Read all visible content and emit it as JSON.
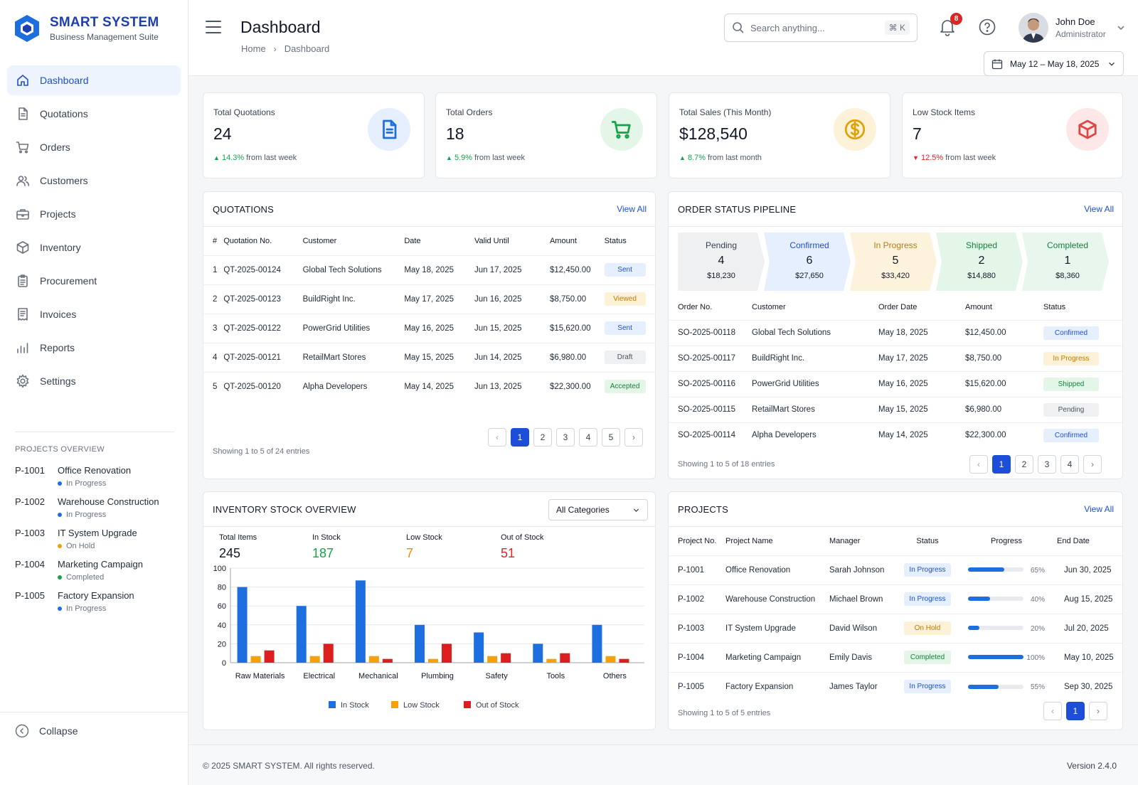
{
  "brand": {
    "title": "SMART SYSTEM",
    "subtitle": "Business Management Suite",
    "accent": "#1d4ed8"
  },
  "nav": [
    {
      "label": "Dashboard",
      "icon": "home-icon",
      "active": true
    },
    {
      "label": "Quotations",
      "icon": "document-icon"
    },
    {
      "label": "Orders",
      "icon": "cart-icon"
    },
    {
      "label": "Customers",
      "icon": "users-icon"
    },
    {
      "label": "Projects",
      "icon": "briefcase-icon"
    },
    {
      "label": "Inventory",
      "icon": "box-icon"
    },
    {
      "label": "Procurement",
      "icon": "clipboard-icon"
    },
    {
      "label": "Invoices",
      "icon": "invoice-icon"
    },
    {
      "label": "Reports",
      "icon": "bar-chart-icon"
    },
    {
      "label": "Settings",
      "icon": "gear-icon"
    }
  ],
  "projects_overview": {
    "title": "PROJECTS OVERVIEW",
    "items": [
      {
        "id": "P-1001",
        "name": "Office Renovation",
        "status": "In Progress",
        "color": "#1d6fe0"
      },
      {
        "id": "P-1002",
        "name": "Warehouse Construction",
        "status": "In Progress",
        "color": "#1d6fe0"
      },
      {
        "id": "P-1003",
        "name": "IT System Upgrade",
        "status": "On Hold",
        "color": "#f59e0b"
      },
      {
        "id": "P-1004",
        "name": "Marketing Campaign",
        "status": "Completed",
        "color": "#16a34a"
      },
      {
        "id": "P-1005",
        "name": "Factory Expansion",
        "status": "In Progress",
        "color": "#1d6fe0"
      }
    ]
  },
  "collapse_label": "Collapse",
  "header": {
    "title": "Dashboard",
    "breadcrumb": [
      "Home",
      "Dashboard"
    ],
    "search_placeholder": "Search anything...",
    "search_shortcut": "⌘ K",
    "notifications": "8",
    "user_name": "John Doe",
    "user_role": "Administrator",
    "date_range": "May 12 – May 18, 2025"
  },
  "stats": [
    {
      "label": "Total Quotations",
      "value": "24",
      "trend": "14.3%",
      "trend_dir": "up",
      "trend_text": "from last week",
      "icon": "document-icon",
      "bg": "#e6effd",
      "color": "#1d6fe0"
    },
    {
      "label": "Total Orders",
      "value": "18",
      "trend": "5.9%",
      "trend_dir": "up",
      "trend_text": "from last week",
      "icon": "cart-icon",
      "bg": "#e3f6e8",
      "color": "#16a34a"
    },
    {
      "label": "Total Sales (This Month)",
      "value": "$128,540",
      "trend": "8.7%",
      "trend_dir": "up",
      "trend_text": "from last month",
      "icon": "dollar-icon",
      "bg": "#fdf2d7",
      "color": "#e0a106"
    },
    {
      "label": "Low Stock Items",
      "value": "7",
      "trend": "12.5%",
      "trend_dir": "down",
      "trend_text": "from last week",
      "icon": "box-icon",
      "bg": "#fde7e7",
      "color": "#e04545"
    }
  ],
  "quotations": {
    "title": "QUOTATIONS",
    "view_all": "View All",
    "columns": [
      "#",
      "Quotation No.",
      "Customer",
      "Date",
      "Valid Until",
      "Amount",
      "Status"
    ],
    "rows": [
      [
        "1",
        "QT-2025-00124",
        "Global Tech Solutions",
        "May 18, 2025",
        "Jun 17, 2025",
        "$12,450.00",
        "Sent"
      ],
      [
        "2",
        "QT-2025-00123",
        "BuildRight Inc.",
        "May 17, 2025",
        "Jun 16, 2025",
        "$8,750.00",
        "Viewed"
      ],
      [
        "3",
        "QT-2025-00122",
        "PowerGrid Utilities",
        "May 16, 2025",
        "Jun 15, 2025",
        "$15,620.00",
        "Sent"
      ],
      [
        "4",
        "QT-2025-00121",
        "RetailMart Stores",
        "May 15, 2025",
        "Jun 14, 2025",
        "$6,980.00",
        "Draft"
      ],
      [
        "5",
        "QT-2025-00120",
        "Alpha Developers",
        "May 14, 2025",
        "Jun 13, 2025",
        "$22,300.00",
        "Accepted"
      ]
    ],
    "pages": [
      "1",
      "2",
      "3",
      "4",
      "5"
    ],
    "footer": "Showing 1 to 5 of 24 entries"
  },
  "pipeline": {
    "title": "ORDER STATUS PIPELINE",
    "view_all": "View All",
    "stages": [
      {
        "name": "Pending",
        "count": "4",
        "amount": "$18,230",
        "bg": "#eef0f2",
        "color": "#374151"
      },
      {
        "name": "Confirmed",
        "count": "6",
        "amount": "$27,650",
        "bg": "#e6effd",
        "color": "#1d4ed8"
      },
      {
        "name": "In Progress",
        "count": "5",
        "amount": "$33,420",
        "bg": "#fdf3dc",
        "color": "#b7791f"
      },
      {
        "name": "Shipped",
        "count": "2",
        "amount": "$14,880",
        "bg": "#e3f6e8",
        "color": "#15803d"
      },
      {
        "name": "Completed",
        "count": "1",
        "amount": "$8,360",
        "bg": "#e8f6ee",
        "color": "#15803d"
      }
    ],
    "columns": [
      "Order No.",
      "Customer",
      "Order Date",
      "Amount",
      "Status"
    ],
    "rows": [
      [
        "SO-2025-00118",
        "Global Tech Solutions",
        "May 18, 2025",
        "$12,450.00",
        "Confirmed"
      ],
      [
        "SO-2025-00117",
        "BuildRight Inc.",
        "May 17, 2025",
        "$8,750.00",
        "In Progress"
      ],
      [
        "SO-2025-00116",
        "PowerGrid Utilities",
        "May 16, 2025",
        "$15,620.00",
        "Shipped"
      ],
      [
        "SO-2025-00115",
        "RetailMart Stores",
        "May 15, 2025",
        "$6,980.00",
        "Pending"
      ],
      [
        "SO-2025-00114",
        "Alpha Developers",
        "May 14, 2025",
        "$22,300.00",
        "Confirmed"
      ]
    ],
    "pages": [
      "1",
      "2",
      "3",
      "4"
    ],
    "footer": "Showing 1 to 5 of 18 entries"
  },
  "inventory": {
    "title": "INVENTORY STOCK OVERVIEW",
    "filter": "All Categories",
    "summary": [
      {
        "label": "Total Items",
        "value": "245",
        "color": "#111827"
      },
      {
        "label": "In Stock",
        "value": "187",
        "color": "#16a34a"
      },
      {
        "label": "Low Stock",
        "value": "7",
        "color": "#f08c00"
      },
      {
        "label": "Out of Stock",
        "value": "51",
        "color": "#dc2626"
      }
    ]
  },
  "chart_data": {
    "type": "bar",
    "categories": [
      "Raw Materials",
      "Electrical",
      "Mechanical",
      "Plumbing",
      "Safety",
      "Tools",
      "Others"
    ],
    "series": [
      {
        "name": "In Stock",
        "color": "#1d6fe0",
        "values": [
          80,
          60,
          87,
          40,
          32,
          20,
          40
        ]
      },
      {
        "name": "Low Stock",
        "color": "#f5a10a",
        "values": [
          7,
          7,
          7,
          4,
          7,
          4,
          7
        ]
      },
      {
        "name": "Out of Stock",
        "color": "#dc1e1e",
        "values": [
          13,
          20,
          4,
          20,
          10,
          10,
          4
        ]
      }
    ],
    "ylim": [
      0,
      100
    ],
    "yticks": [
      "0",
      "20",
      "40",
      "60",
      "80",
      "100"
    ],
    "legend": "bottom"
  },
  "projects": {
    "title": "PROJECTS",
    "view_all": "View All",
    "columns": [
      "Project No.",
      "Project Name",
      "Manager",
      "Status",
      "Progress",
      "End Date"
    ],
    "rows": [
      {
        "id": "P-1001",
        "name": "Office Renovation",
        "manager": "Sarah Johnson",
        "status": "In Progress",
        "progress": 65,
        "progress_label": "65%",
        "end": "Jun 30, 2025"
      },
      {
        "id": "P-1002",
        "name": "Warehouse Construction",
        "manager": "Michael Brown",
        "status": "In Progress",
        "progress": 40,
        "progress_label": "40%",
        "end": "Aug 15, 2025"
      },
      {
        "id": "P-1003",
        "name": "IT System Upgrade",
        "manager": "David Wilson",
        "status": "On Hold",
        "progress": 20,
        "progress_label": "20%",
        "end": "Jul 20, 2025"
      },
      {
        "id": "P-1004",
        "name": "Marketing Campaign",
        "manager": "Emily Davis",
        "status": "Completed",
        "progress": 100,
        "progress_label": "100%",
        "end": "May 10, 2025"
      },
      {
        "id": "P-1005",
        "name": "Factory Expansion",
        "manager": "James Taylor",
        "status": "In Progress",
        "progress": 55,
        "progress_label": "55%",
        "end": "Sep 30, 2025"
      }
    ],
    "pages": [
      "1"
    ],
    "footer": "Showing 1 to 5 of 5 entries"
  },
  "footer": {
    "copyright": "© 2025 SMART SYSTEM. All rights reserved.",
    "version": "Version 2.4.0"
  }
}
